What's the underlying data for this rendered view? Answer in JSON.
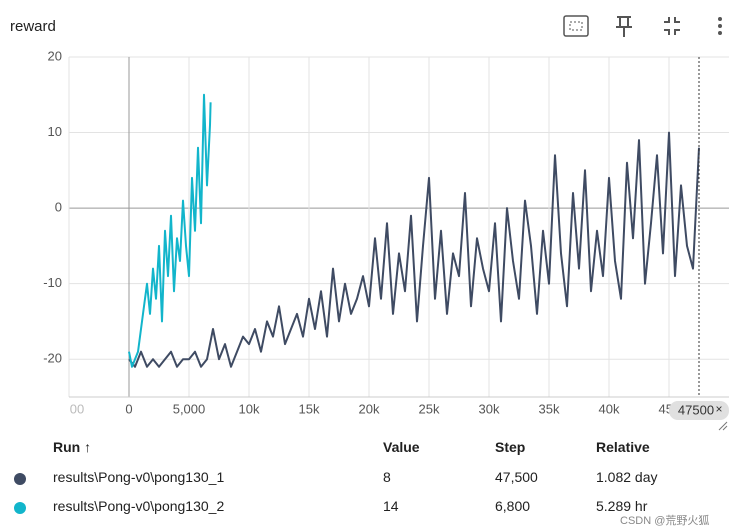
{
  "chart_data": {
    "type": "line",
    "title": "reward",
    "xlim": [
      -5000,
      50000
    ],
    "ylim": [
      -25,
      20
    ],
    "xticks": [
      {
        "value": -5000,
        "label": "00"
      },
      0,
      {
        "value": 5000,
        "label": "5,000"
      },
      {
        "value": 10000,
        "label": "10k"
      },
      {
        "value": 15000,
        "label": "15k"
      },
      {
        "value": 20000,
        "label": "20k"
      },
      {
        "value": 25000,
        "label": "25k"
      },
      {
        "value": 30000,
        "label": "30k"
      },
      {
        "value": 35000,
        "label": "35k"
      },
      {
        "value": 40000,
        "label": "40k"
      },
      {
        "value": 45000,
        "label": "45k"
      }
    ],
    "yticks": [
      -20,
      -10,
      0,
      10,
      20
    ],
    "grid": true,
    "cursor": {
      "value": 47500,
      "label": "47500"
    },
    "series": [
      {
        "name": "results\\Pong-v0\\pong130_1",
        "color": "#3f4b63",
        "x": [
          0,
          500,
          1000,
          1500,
          2000,
          2500,
          3000,
          3500,
          4000,
          4500,
          5000,
          5500,
          6000,
          6500,
          7000,
          7500,
          8000,
          8500,
          9000,
          9500,
          10000,
          10500,
          11000,
          11500,
          12000,
          12500,
          13000,
          13500,
          14000,
          14500,
          15000,
          15500,
          16000,
          16500,
          17000,
          17500,
          18000,
          18500,
          19000,
          19500,
          20000,
          20500,
          21000,
          21500,
          22000,
          22500,
          23000,
          23500,
          24000,
          24500,
          25000,
          25500,
          26000,
          26500,
          27000,
          27500,
          28000,
          28500,
          29000,
          29500,
          30000,
          30500,
          31000,
          31500,
          32000,
          32500,
          33000,
          33500,
          34000,
          34500,
          35000,
          35500,
          36000,
          36500,
          37000,
          37500,
          38000,
          38500,
          39000,
          39500,
          40000,
          40500,
          41000,
          41500,
          42000,
          42500,
          43000,
          43500,
          44000,
          44500,
          45000,
          45500,
          46000,
          46500,
          47000,
          47500
        ],
        "values": [
          -20,
          -21,
          -19,
          -21,
          -20,
          -21,
          -20,
          -19,
          -21,
          -20,
          -20,
          -19,
          -21,
          -20,
          -16,
          -20,
          -18,
          -21,
          -19,
          -17,
          -18,
          -16,
          -19,
          -15,
          -17,
          -13,
          -18,
          -16,
          -14,
          -17,
          -12,
          -16,
          -11,
          -17,
          -8,
          -15,
          -10,
          -14,
          -12,
          -9,
          -13,
          -4,
          -12,
          -2,
          -14,
          -6,
          -11,
          -1,
          -15,
          -5,
          4,
          -12,
          -3,
          -14,
          -6,
          -9,
          2,
          -13,
          -4,
          -8,
          -11,
          -2,
          -15,
          0,
          -7,
          -12,
          1,
          -5,
          -14,
          -3,
          -10,
          7,
          -6,
          -13,
          2,
          -8,
          5,
          -11,
          -3,
          -9,
          4,
          -7,
          -12,
          6,
          -4,
          9,
          -10,
          -2,
          7,
          -6,
          10,
          -9,
          3,
          -5,
          -8,
          8
        ]
      },
      {
        "name": "results\\Pong-v0\\pong130_2",
        "color": "#12b5cb",
        "x": [
          0,
          250,
          500,
          750,
          1000,
          1250,
          1500,
          1750,
          2000,
          2250,
          2500,
          2750,
          3000,
          3250,
          3500,
          3750,
          4000,
          4250,
          4500,
          4750,
          5000,
          5250,
          5500,
          5750,
          6000,
          6250,
          6500,
          6750,
          6800
        ],
        "values": [
          -19,
          -21,
          -20,
          -19,
          -16,
          -13,
          -10,
          -14,
          -8,
          -12,
          -5,
          -15,
          -3,
          -9,
          -1,
          -11,
          -4,
          -7,
          1,
          -5,
          -9,
          4,
          -3,
          8,
          -2,
          15,
          3,
          11,
          14
        ]
      }
    ]
  },
  "table": {
    "header": [
      "Run ↑",
      "Value",
      "Step",
      "Relative"
    ],
    "rows": [
      [
        "results\\Pong-v0\\pong130_1",
        "8",
        "47,500",
        "1.082 day"
      ],
      [
        "results\\Pong-v0\\pong130_2",
        "14",
        "6,800",
        "5.289 hr"
      ]
    ]
  },
  "watermark": "CSDN @荒野火狐"
}
